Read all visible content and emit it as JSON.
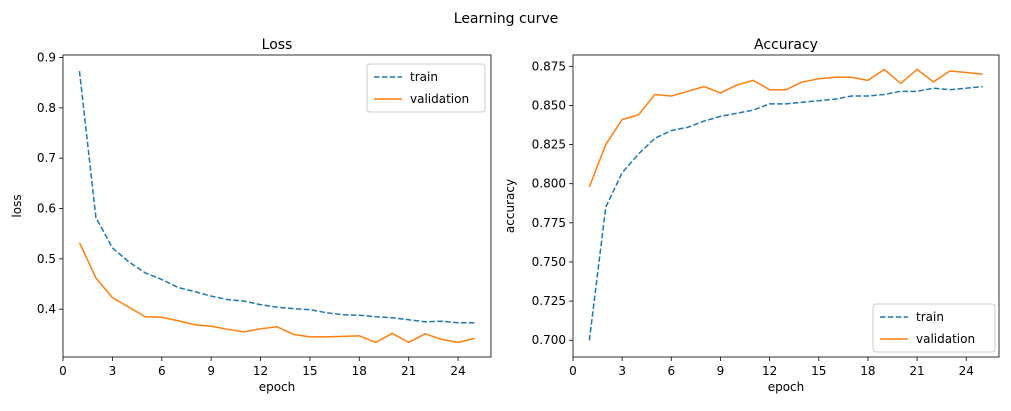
{
  "figure_title": "Learning curve",
  "colors": {
    "train": "#1f77b4",
    "validation": "#ff7f0e"
  },
  "chart_data": [
    {
      "type": "line",
      "title": "Loss",
      "xlabel": "epoch",
      "ylabel": "loss",
      "xlim": [
        0.0,
        26.0
      ],
      "ylim": [
        0.305,
        0.905
      ],
      "xticks": [
        0,
        3,
        6,
        9,
        12,
        15,
        18,
        21,
        24
      ],
      "yticks": [
        0.4,
        0.5,
        0.6,
        0.7,
        0.8,
        0.9
      ],
      "ytick_labels": [
        "0.4",
        "0.5",
        "0.6",
        "0.7",
        "0.8",
        "0.9"
      ],
      "legend_position": "upper right",
      "x": [
        1,
        2,
        3,
        4,
        5,
        6,
        7,
        8,
        9,
        10,
        11,
        12,
        13,
        14,
        15,
        16,
        17,
        18,
        19,
        20,
        21,
        22,
        23,
        24,
        25
      ],
      "series": [
        {
          "name": "train",
          "style": "dashed",
          "values": [
            0.873,
            0.582,
            0.522,
            0.494,
            0.472,
            0.459,
            0.443,
            0.435,
            0.426,
            0.419,
            0.416,
            0.409,
            0.404,
            0.401,
            0.399,
            0.393,
            0.389,
            0.388,
            0.385,
            0.383,
            0.379,
            0.375,
            0.376,
            0.373,
            0.373
          ]
        },
        {
          "name": "validation",
          "style": "solid",
          "values": [
            0.532,
            0.462,
            0.423,
            0.404,
            0.385,
            0.384,
            0.377,
            0.369,
            0.366,
            0.36,
            0.355,
            0.361,
            0.365,
            0.35,
            0.345,
            0.345,
            0.346,
            0.347,
            0.334,
            0.352,
            0.334,
            0.351,
            0.34,
            0.334,
            0.342
          ]
        }
      ]
    },
    {
      "type": "line",
      "title": "Accuracy",
      "xlabel": "epoch",
      "ylabel": "accuracy",
      "xlim": [
        0.0,
        26.0
      ],
      "ylim": [
        0.6893,
        0.8822
      ],
      "xticks": [
        0,
        3,
        6,
        9,
        12,
        15,
        18,
        21,
        24
      ],
      "yticks": [
        0.7,
        0.725,
        0.75,
        0.775,
        0.8,
        0.825,
        0.85,
        0.875
      ],
      "ytick_labels": [
        "0.700",
        "0.725",
        "0.750",
        "0.775",
        "0.800",
        "0.825",
        "0.850",
        "0.875"
      ],
      "legend_position": "lower right",
      "x": [
        1,
        2,
        3,
        4,
        5,
        6,
        7,
        8,
        9,
        10,
        11,
        12,
        13,
        14,
        15,
        16,
        17,
        18,
        19,
        20,
        21,
        22,
        23,
        24,
        25
      ],
      "series": [
        {
          "name": "train",
          "style": "dashed",
          "values": [
            0.7,
            0.785,
            0.807,
            0.819,
            0.829,
            0.834,
            0.836,
            0.84,
            0.843,
            0.845,
            0.847,
            0.851,
            0.851,
            0.852,
            0.853,
            0.854,
            0.856,
            0.856,
            0.857,
            0.859,
            0.859,
            0.861,
            0.86,
            0.861,
            0.862
          ]
        },
        {
          "name": "validation",
          "style": "solid",
          "values": [
            0.798,
            0.825,
            0.841,
            0.844,
            0.857,
            0.856,
            0.859,
            0.862,
            0.858,
            0.863,
            0.866,
            0.86,
            0.86,
            0.865,
            0.867,
            0.868,
            0.868,
            0.866,
            0.873,
            0.864,
            0.873,
            0.865,
            0.872,
            0.871,
            0.87
          ]
        }
      ]
    }
  ]
}
